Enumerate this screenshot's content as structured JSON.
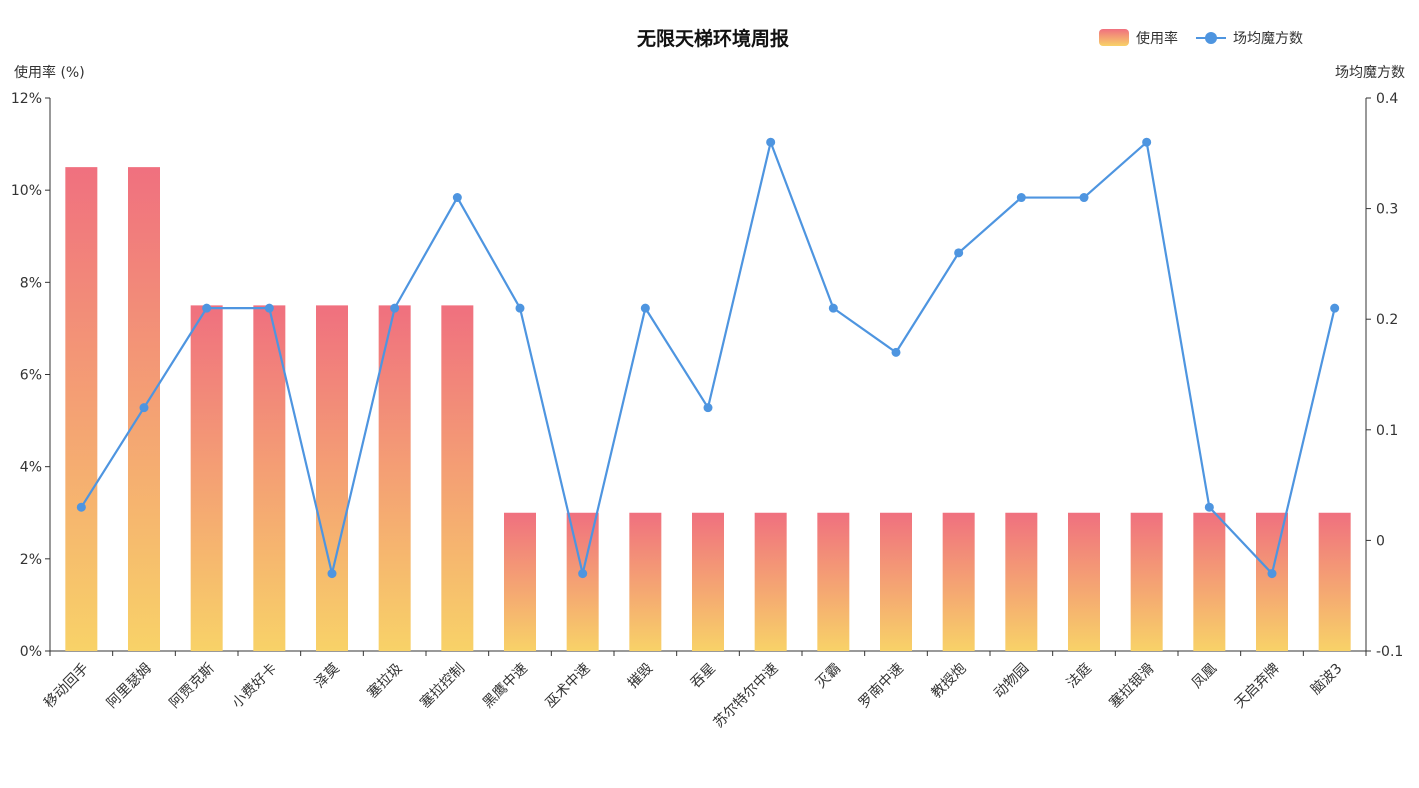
{
  "chart_data": {
    "type": "bar",
    "title": "无限天梯环境周报",
    "categories": [
      "移动回手",
      "阿里瑟姆",
      "阿贾克斯",
      "小费好卡",
      "泽莫",
      "塞拉圾",
      "塞拉控制",
      "黑鹰中速",
      "巫术中速",
      "摧毁",
      "吞星",
      "苏尔特尔中速",
      "灭霸",
      "罗南中速",
      "教授炮",
      "动物园",
      "法庭",
      "塞拉银滑",
      "凤凰",
      "天启弃牌",
      "脑波3"
    ],
    "series": [
      {
        "name": "使用率",
        "type": "bar",
        "axis": "left",
        "values": [
          10.5,
          10.5,
          7.5,
          7.5,
          7.5,
          7.5,
          7.5,
          3,
          3,
          3,
          3,
          3,
          3,
          3,
          3,
          3,
          3,
          3,
          3,
          3,
          3
        ],
        "gradient": [
          "#f0707f",
          "#f8d268"
        ]
      },
      {
        "name": "场均魔方数",
        "type": "line",
        "axis": "right",
        "values": [
          0.03,
          0.12,
          0.21,
          0.21,
          -0.03,
          0.21,
          0.31,
          0.21,
          -0.03,
          0.21,
          0.12,
          0.36,
          0.21,
          0.17,
          0.26,
          0.31,
          0.31,
          0.36,
          0.03,
          -0.03,
          0.21
        ],
        "color": "#4e95e0"
      }
    ],
    "left_axis": {
      "name": "使用率 (%)",
      "ylim": [
        0,
        12
      ],
      "ticks": [
        0,
        2,
        4,
        6,
        8,
        10,
        12
      ],
      "tick_labels": [
        "0%",
        "2%",
        "4%",
        "6%",
        "8%",
        "10%",
        "12%"
      ]
    },
    "right_axis": {
      "name": "场均魔方数",
      "ylim": [
        -0.1,
        0.4
      ],
      "ticks": [
        -0.1,
        0,
        0.1,
        0.2,
        0.3,
        0.4
      ],
      "tick_labels": [
        "-0.1",
        "0",
        "0.1",
        "0.2",
        "0.3",
        "0.4"
      ]
    },
    "legend": {
      "position": "top-right",
      "items": [
        {
          "label": "使用率",
          "kind": "bar"
        },
        {
          "label": "场均魔方数",
          "kind": "line"
        }
      ]
    },
    "grid": false
  }
}
